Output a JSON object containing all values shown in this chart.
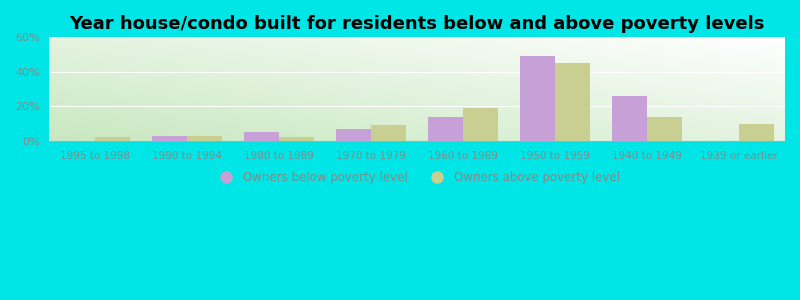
{
  "title": "Year house/condo built for residents below and above poverty levels",
  "categories": [
    "1995 to 1998",
    "1990 to 1994",
    "1980 to 1989",
    "1970 to 1979",
    "1960 to 1969",
    "1950 to 1959",
    "1940 to 1949",
    "1939 or earlier"
  ],
  "below_poverty": [
    0,
    3,
    5,
    7,
    14,
    49,
    26,
    0
  ],
  "above_poverty": [
    2,
    2.5,
    2,
    9,
    19,
    45,
    14,
    10
  ],
  "below_color": "#c8a0d8",
  "above_color": "#c8cf90",
  "ylim": [
    0,
    60
  ],
  "yticks": [
    0,
    20,
    40,
    60
  ],
  "ytick_labels": [
    "0%",
    "20%",
    "40%",
    "60%"
  ],
  "legend_below": "Owners below poverty level",
  "legend_above": "Owners above poverty level",
  "outer_bg": "#00e5e5",
  "bar_width": 0.38,
  "title_fontsize": 13,
  "grad_bottom_left": "#c8e8c0",
  "grad_top_right": "#f0fff0",
  "tick_color": "#888888",
  "spine_color": "#aaaaaa"
}
